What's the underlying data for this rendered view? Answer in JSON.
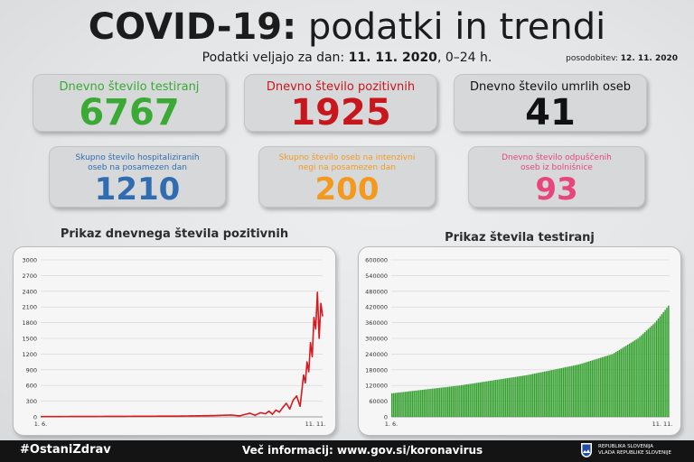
{
  "header": {
    "title_bold": "COVID-19:",
    "title_rest": " podatki in trendi",
    "subtitle_prefix": "Podatki veljajo za dan: ",
    "subtitle_date": "11. 11. 2020",
    "subtitle_suffix": ", 0–24 h.",
    "updated_label": "posodobitev: ",
    "updated_date": "12. 11. 2020"
  },
  "cards": {
    "tests": {
      "label": "Dnevno število testiranj",
      "value": "6767",
      "color": "#3aaa35"
    },
    "positive": {
      "label": "Dnevno število pozitivnih",
      "value": "1925",
      "color": "#c8161d"
    },
    "deaths": {
      "label": "Dnevno število umrlih oseb",
      "value": "41",
      "color": "#111111"
    },
    "hospital": {
      "label_1": "Skupno število hospitaliziranih",
      "label_2": "oseb na posamezen dan",
      "value": "1210",
      "color": "#2f6db0",
      "label_color": "#2f6db0"
    },
    "icu": {
      "label_1": "Skupno število oseb na intenzivni",
      "label_2": "negi na posamezen dan",
      "value": "200",
      "color": "#f39a1e",
      "label_color": "#f39a1e"
    },
    "discharged": {
      "label_1": "Dnevno število odpuščenih",
      "label_2": "oseb iz bolnišnice",
      "value": "93",
      "color": "#e8457a",
      "label_color": "#e8457a"
    }
  },
  "chart_data": [
    {
      "type": "line",
      "title": "Prikaz dnevnega števila pozitivnih",
      "x_start_label": "1. 6.",
      "x_end_label": "11. 11.",
      "yticks": [
        "0",
        "300",
        "600",
        "900",
        "1200",
        "1500",
        "1800",
        "2100",
        "2400",
        "2700",
        "3000"
      ],
      "ylim": [
        0,
        3000
      ],
      "color": "#d71920",
      "x_count": 164,
      "y_keypoints": [
        [
          0,
          5
        ],
        [
          30,
          8
        ],
        [
          60,
          12
        ],
        [
          80,
          15
        ],
        [
          100,
          25
        ],
        [
          110,
          35
        ],
        [
          115,
          20
        ],
        [
          118,
          45
        ],
        [
          121,
          70
        ],
        [
          124,
          30
        ],
        [
          127,
          80
        ],
        [
          130,
          60
        ],
        [
          132,
          110
        ],
        [
          134,
          50
        ],
        [
          136,
          130
        ],
        [
          138,
          90
        ],
        [
          140,
          180
        ],
        [
          142,
          260
        ],
        [
          144,
          150
        ],
        [
          146,
          320
        ],
        [
          148,
          400
        ],
        [
          150,
          200
        ],
        [
          152,
          800
        ],
        [
          153,
          650
        ],
        [
          154,
          1050
        ],
        [
          155,
          860
        ],
        [
          156,
          1420
        ],
        [
          157,
          1150
        ],
        [
          158,
          1900
        ],
        [
          159,
          1680
        ],
        [
          160,
          2380
        ],
        [
          161,
          1500
        ],
        [
          162,
          2170
        ],
        [
          163,
          1920
        ]
      ]
    },
    {
      "type": "bar",
      "title": "Prikaz števila testiranj",
      "x_start_label": "1. 6.",
      "x_end_label": "11. 11.",
      "yticks": [
        "0",
        "60000",
        "120000",
        "180000",
        "240000",
        "300000",
        "360000",
        "420000",
        "480000",
        "540000",
        "600000"
      ],
      "ylim": [
        0,
        600000
      ],
      "color": "#34a02e",
      "x_count": 164,
      "y_keypoints": [
        [
          0,
          90000
        ],
        [
          40,
          120000
        ],
        [
          80,
          160000
        ],
        [
          110,
          200000
        ],
        [
          130,
          240000
        ],
        [
          145,
          300000
        ],
        [
          155,
          360000
        ],
        [
          163,
          425000
        ]
      ]
    }
  ],
  "footer": {
    "hashtag": "#OstaniZdrav",
    "info": "Več informacij: www.gov.si/koronavirus",
    "gov_line1": "REPUBLIKA SLOVENIJA",
    "gov_line2": "VLADA REPUBLIKE SLOVENIJE"
  }
}
